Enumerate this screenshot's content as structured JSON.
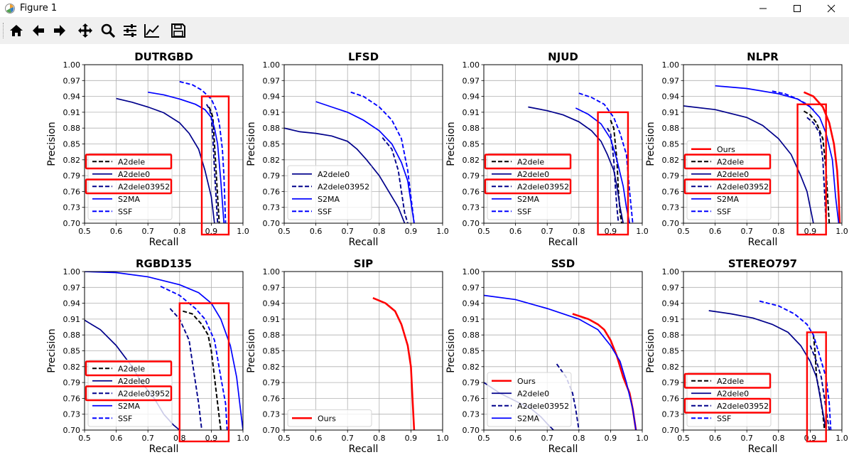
{
  "window": {
    "title": "Figure 1"
  },
  "toolbar": {
    "items": [
      "home",
      "back",
      "forward",
      "pan",
      "zoom",
      "configure",
      "edit-axes",
      "save"
    ]
  },
  "colors": {
    "red": "#ff0000",
    "navy": "#00008b",
    "blue": "#0000ff",
    "black": "#000000",
    "darkblue": "#00007f"
  },
  "axes_common": {
    "xlabel": "Recall",
    "ylabel": "Precision",
    "xticks": [
      "0.5",
      "0.6",
      "0.7",
      "0.8",
      "0.9",
      "1.0"
    ],
    "yticks": [
      "0.70",
      "0.73",
      "0.76",
      "0.79",
      "0.82",
      "0.85",
      "0.88",
      "0.91",
      "0.94",
      "0.97",
      "1.00"
    ]
  },
  "chart_data": [
    {
      "type": "line",
      "title": "DUTRGBD",
      "xlabel": "Recall",
      "ylabel": "Precision",
      "xlim": [
        0.5,
        1.0
      ],
      "ylim": [
        0.7,
        1.0
      ],
      "grid": true,
      "legend": {
        "placement": "lower-left",
        "entries": [
          "A2dele",
          "A2dele0",
          "A2dele03952",
          "S2MA",
          "SSF"
        ]
      },
      "series": [
        {
          "name": "A2dele",
          "style": "black-dashed",
          "x": [
            0.893,
            0.9,
            0.905,
            0.91,
            0.915,
            0.92,
            0.925
          ],
          "y": [
            0.92,
            0.91,
            0.9,
            0.85,
            0.8,
            0.75,
            0.7
          ]
        },
        {
          "name": "A2dele0",
          "style": "navy-solid",
          "x": [
            0.6,
            0.65,
            0.7,
            0.75,
            0.8,
            0.83,
            0.86,
            0.88,
            0.9,
            0.91
          ],
          "y": [
            0.936,
            0.929,
            0.92,
            0.909,
            0.89,
            0.87,
            0.84,
            0.8,
            0.75,
            0.7
          ]
        },
        {
          "name": "A2dele03952",
          "style": "navy-dashed",
          "x": [
            0.885,
            0.895,
            0.9,
            0.905,
            0.91,
            0.915,
            0.92
          ],
          "y": [
            0.925,
            0.915,
            0.9,
            0.86,
            0.8,
            0.75,
            0.7
          ]
        },
        {
          "name": "S2MA",
          "style": "blue-solid",
          "x": [
            0.7,
            0.75,
            0.8,
            0.85,
            0.88,
            0.9,
            0.91,
            0.92,
            0.93,
            0.94
          ],
          "y": [
            0.948,
            0.943,
            0.935,
            0.925,
            0.915,
            0.9,
            0.88,
            0.85,
            0.78,
            0.7
          ]
        },
        {
          "name": "SSF",
          "style": "blue-dashed",
          "x": [
            0.8,
            0.84,
            0.87,
            0.9,
            0.915,
            0.925,
            0.935,
            0.94,
            0.945
          ],
          "y": [
            0.968,
            0.962,
            0.952,
            0.935,
            0.915,
            0.89,
            0.84,
            0.79,
            0.7
          ]
        }
      ],
      "highlights": [
        "A2dele",
        "A2dele03952"
      ]
    },
    {
      "type": "line",
      "title": "LFSD",
      "xlabel": "Recall",
      "ylabel": "Precision",
      "xlim": [
        0.5,
        1.0
      ],
      "ylim": [
        0.7,
        1.0
      ],
      "grid": true,
      "legend": {
        "placement": "lower-left",
        "entries": [
          "A2dele0",
          "A2dele03952",
          "S2MA",
          "SSF"
        ]
      },
      "series": [
        {
          "name": "A2dele0",
          "style": "navy-solid",
          "x": [
            0.5,
            0.55,
            0.6,
            0.65,
            0.7,
            0.73,
            0.76,
            0.8,
            0.83,
            0.86,
            0.88
          ],
          "y": [
            0.88,
            0.873,
            0.87,
            0.865,
            0.855,
            0.84,
            0.82,
            0.79,
            0.76,
            0.73,
            0.7
          ]
        },
        {
          "name": "A2dele03952",
          "style": "navy-dashed",
          "x": [
            0.81,
            0.84,
            0.86,
            0.87,
            0.88,
            0.89
          ],
          "y": [
            0.862,
            0.84,
            0.8,
            0.76,
            0.72,
            0.7
          ]
        },
        {
          "name": "S2MA",
          "style": "blue-solid",
          "x": [
            0.6,
            0.65,
            0.7,
            0.75,
            0.8,
            0.84,
            0.87,
            0.89,
            0.9,
            0.91
          ],
          "y": [
            0.93,
            0.92,
            0.91,
            0.895,
            0.875,
            0.85,
            0.815,
            0.78,
            0.74,
            0.7
          ]
        },
        {
          "name": "SSF",
          "style": "blue-dashed",
          "x": [
            0.71,
            0.75,
            0.8,
            0.84,
            0.87,
            0.89,
            0.9,
            0.91
          ],
          "y": [
            0.948,
            0.94,
            0.92,
            0.895,
            0.86,
            0.8,
            0.75,
            0.7
          ]
        }
      ],
      "highlights": []
    },
    {
      "type": "line",
      "title": "NJUD",
      "xlabel": "Recall",
      "ylabel": "Precision",
      "xlim": [
        0.5,
        1.0
      ],
      "ylim": [
        0.7,
        1.0
      ],
      "grid": true,
      "legend": {
        "placement": "lower-left",
        "entries": [
          "A2dele",
          "A2dele0",
          "A2dele03952",
          "S2MA",
          "SSF"
        ]
      },
      "series": [
        {
          "name": "A2dele",
          "style": "black-dashed",
          "x": [
            0.9,
            0.91,
            0.92,
            0.925,
            0.93,
            0.935
          ],
          "y": [
            0.895,
            0.88,
            0.82,
            0.76,
            0.72,
            0.7
          ]
        },
        {
          "name": "A2dele0",
          "style": "navy-solid",
          "x": [
            0.64,
            0.7,
            0.75,
            0.8,
            0.84,
            0.87,
            0.89,
            0.91,
            0.92,
            0.93,
            0.94
          ],
          "y": [
            0.92,
            0.913,
            0.905,
            0.892,
            0.875,
            0.855,
            0.83,
            0.8,
            0.77,
            0.73,
            0.7
          ]
        },
        {
          "name": "A2dele03952",
          "style": "navy-dashed",
          "x": [
            0.89,
            0.9,
            0.91,
            0.915,
            0.92,
            0.925
          ],
          "y": [
            0.88,
            0.87,
            0.82,
            0.77,
            0.73,
            0.7
          ]
        },
        {
          "name": "S2MA",
          "style": "blue-solid",
          "x": [
            0.79,
            0.83,
            0.87,
            0.9,
            0.92,
            0.94,
            0.95,
            0.96
          ],
          "y": [
            0.918,
            0.906,
            0.888,
            0.86,
            0.82,
            0.77,
            0.73,
            0.7
          ]
        },
        {
          "name": "SSF",
          "style": "blue-dashed",
          "x": [
            0.8,
            0.84,
            0.88,
            0.91,
            0.93,
            0.95,
            0.96,
            0.97
          ],
          "y": [
            0.946,
            0.938,
            0.925,
            0.9,
            0.87,
            0.83,
            0.76,
            0.7
          ]
        }
      ],
      "highlights": [
        "A2dele",
        "A2dele03952"
      ]
    },
    {
      "type": "line",
      "title": "NLPR",
      "xlabel": "Recall",
      "ylabel": "Precision",
      "xlim": [
        0.5,
        1.0
      ],
      "ylim": [
        0.7,
        1.0
      ],
      "grid": true,
      "legend": {
        "placement": "lower-left",
        "entries": [
          "Ours",
          "A2dele",
          "A2dele0",
          "A2dele03952",
          "S2MA",
          "SSF"
        ]
      },
      "series": [
        {
          "name": "Ours",
          "style": "red-solid",
          "x": [
            0.88,
            0.91,
            0.94,
            0.96,
            0.975,
            0.985,
            0.99,
            0.993
          ],
          "y": [
            0.948,
            0.94,
            0.92,
            0.89,
            0.85,
            0.8,
            0.75,
            0.7
          ]
        },
        {
          "name": "A2dele",
          "style": "black-dashed",
          "x": [
            0.88,
            0.9,
            0.92,
            0.94,
            0.95,
            0.955,
            0.96
          ],
          "y": [
            0.912,
            0.905,
            0.89,
            0.86,
            0.8,
            0.75,
            0.7
          ]
        },
        {
          "name": "A2dele0",
          "style": "navy-solid",
          "x": [
            0.5,
            0.6,
            0.7,
            0.75,
            0.8,
            0.84,
            0.87,
            0.89,
            0.9,
            0.91
          ],
          "y": [
            0.922,
            0.915,
            0.9,
            0.885,
            0.86,
            0.83,
            0.79,
            0.76,
            0.73,
            0.7
          ]
        },
        {
          "name": "A2dele03952",
          "style": "navy-dashed",
          "x": [
            0.89,
            0.91,
            0.93,
            0.94,
            0.945,
            0.95
          ],
          "y": [
            0.9,
            0.89,
            0.87,
            0.82,
            0.76,
            0.7
          ]
        },
        {
          "name": "S2MA",
          "style": "blue-solid",
          "x": [
            0.6,
            0.7,
            0.8,
            0.86,
            0.9,
            0.93,
            0.95,
            0.97,
            0.98,
            0.99
          ],
          "y": [
            0.96,
            0.955,
            0.945,
            0.935,
            0.92,
            0.9,
            0.87,
            0.82,
            0.75,
            0.7
          ]
        },
        {
          "name": "SSF",
          "style": "blue-dashed",
          "x": [
            0.78,
            0.82,
            0.86,
            0.89,
            0.91
          ],
          "y": [
            0.95,
            0.945,
            0.935,
            0.925,
            0.915
          ]
        }
      ],
      "highlights": [
        "A2dele",
        "A2dele03952"
      ]
    },
    {
      "type": "line",
      "title": "RGBD135",
      "xlabel": "Recall",
      "ylabel": "Precision",
      "xlim": [
        0.5,
        1.0
      ],
      "ylim": [
        0.7,
        1.0
      ],
      "grid": true,
      "legend": {
        "placement": "lower-left",
        "entries": [
          "A2dele",
          "A2dele0",
          "A2dele03952",
          "S2MA",
          "SSF"
        ]
      },
      "series": [
        {
          "name": "A2dele",
          "style": "black-dashed",
          "x": [
            0.81,
            0.84,
            0.87,
            0.89,
            0.9,
            0.91,
            0.92,
            0.93
          ],
          "y": [
            0.925,
            0.92,
            0.9,
            0.88,
            0.85,
            0.8,
            0.75,
            0.7
          ]
        },
        {
          "name": "A2dele0",
          "style": "navy-solid",
          "x": [
            0.5,
            0.55,
            0.6,
            0.65,
            0.68,
            0.72,
            0.75,
            0.78,
            0.8
          ],
          "y": [
            0.908,
            0.89,
            0.86,
            0.82,
            0.79,
            0.76,
            0.73,
            0.71,
            0.7
          ]
        },
        {
          "name": "A2dele03952",
          "style": "navy-dashed",
          "x": [
            0.77,
            0.8,
            0.83,
            0.84,
            0.85,
            0.86,
            0.87
          ],
          "y": [
            0.93,
            0.91,
            0.87,
            0.83,
            0.79,
            0.75,
            0.7
          ]
        },
        {
          "name": "S2MA",
          "style": "blue-solid",
          "x": [
            0.5,
            0.6,
            0.7,
            0.8,
            0.86,
            0.9,
            0.93,
            0.96,
            0.98,
            0.99,
            1.0
          ],
          "y": [
            1.0,
            0.998,
            0.99,
            0.975,
            0.96,
            0.94,
            0.91,
            0.86,
            0.8,
            0.75,
            0.7
          ]
        },
        {
          "name": "SSF",
          "style": "blue-dashed",
          "x": [
            0.74,
            0.8,
            0.85,
            0.88,
            0.91,
            0.93,
            0.945,
            0.95
          ],
          "y": [
            0.972,
            0.955,
            0.93,
            0.91,
            0.87,
            0.8,
            0.75,
            0.7
          ]
        }
      ],
      "highlights": [
        "A2dele",
        "A2dele03952"
      ]
    },
    {
      "type": "line",
      "title": "SIP",
      "xlabel": "Recall",
      "ylabel": "Precision",
      "xlim": [
        0.5,
        1.0
      ],
      "ylim": [
        0.7,
        1.0
      ],
      "grid": true,
      "legend": {
        "placement": "lower-left",
        "entries": [
          "Ours"
        ]
      },
      "series": [
        {
          "name": "Ours",
          "style": "red-solid",
          "x": [
            0.78,
            0.82,
            0.85,
            0.87,
            0.89,
            0.9,
            0.905,
            0.91
          ],
          "y": [
            0.95,
            0.94,
            0.925,
            0.9,
            0.86,
            0.82,
            0.76,
            0.7
          ]
        }
      ],
      "highlights": []
    },
    {
      "type": "line",
      "title": "SSD",
      "xlabel": "Recall",
      "ylabel": "Precision",
      "xlim": [
        0.5,
        1.0
      ],
      "ylim": [
        0.7,
        1.0
      ],
      "grid": true,
      "legend": {
        "placement": "lower-left",
        "entries": [
          "Ours",
          "A2dele0",
          "A2dele03952",
          "S2MA"
        ]
      },
      "series": [
        {
          "name": "Ours",
          "style": "red-solid",
          "x": [
            0.78,
            0.83,
            0.86,
            0.88,
            0.9,
            0.92,
            0.94,
            0.96,
            0.97,
            0.98
          ],
          "y": [
            0.92,
            0.91,
            0.9,
            0.89,
            0.87,
            0.84,
            0.8,
            0.77,
            0.74,
            0.7
          ]
        },
        {
          "name": "A2dele0",
          "style": "navy-solid",
          "x": [
            0.5,
            0.55,
            0.6,
            0.65,
            0.68,
            0.7,
            0.72
          ],
          "y": [
            0.79,
            0.77,
            0.755,
            0.74,
            0.725,
            0.712,
            0.7
          ]
        },
        {
          "name": "A2dele03952",
          "style": "navy-dashed",
          "x": [
            0.73,
            0.76,
            0.78,
            0.79,
            0.8
          ],
          "y": [
            0.825,
            0.8,
            0.77,
            0.74,
            0.7
          ]
        },
        {
          "name": "S2MA",
          "style": "blue-solid",
          "x": [
            0.5,
            0.6,
            0.7,
            0.8,
            0.86,
            0.9,
            0.93,
            0.95,
            0.97,
            0.98
          ],
          "y": [
            0.955,
            0.947,
            0.93,
            0.91,
            0.89,
            0.86,
            0.83,
            0.79,
            0.74,
            0.7
          ]
        }
      ],
      "highlights": []
    },
    {
      "type": "line",
      "title": "STEREO797",
      "xlabel": "Recall",
      "ylabel": "Precision",
      "xlim": [
        0.5,
        1.0
      ],
      "ylim": [
        0.7,
        1.0
      ],
      "grid": true,
      "legend": {
        "placement": "lower-left",
        "entries": [
          "A2dele",
          "A2dele0",
          "A2dele03952",
          "SSF"
        ]
      },
      "series": [
        {
          "name": "A2dele",
          "style": "black-dashed",
          "x": [
            0.91,
            0.915,
            0.92,
            0.93,
            0.94,
            0.945
          ],
          "y": [
            0.88,
            0.85,
            0.8,
            0.77,
            0.73,
            0.7
          ]
        },
        {
          "name": "A2dele0",
          "style": "navy-solid",
          "x": [
            0.58,
            0.65,
            0.72,
            0.78,
            0.83,
            0.87,
            0.9,
            0.92,
            0.935,
            0.95
          ],
          "y": [
            0.926,
            0.92,
            0.912,
            0.9,
            0.885,
            0.86,
            0.83,
            0.8,
            0.75,
            0.7
          ]
        },
        {
          "name": "A2dele03952",
          "style": "navy-dashed",
          "x": [
            0.9,
            0.92,
            0.935,
            0.945,
            0.955,
            0.96
          ],
          "y": [
            0.86,
            0.83,
            0.8,
            0.76,
            0.72,
            0.7
          ]
        },
        {
          "name": "SSF",
          "style": "blue-dashed",
          "x": [
            0.74,
            0.8,
            0.85,
            0.89,
            0.91,
            0.93,
            0.95,
            0.96,
            0.965
          ],
          "y": [
            0.944,
            0.935,
            0.92,
            0.9,
            0.88,
            0.84,
            0.8,
            0.75,
            0.7
          ]
        }
      ],
      "highlights": [
        "A2dele",
        "A2dele03952"
      ]
    }
  ]
}
